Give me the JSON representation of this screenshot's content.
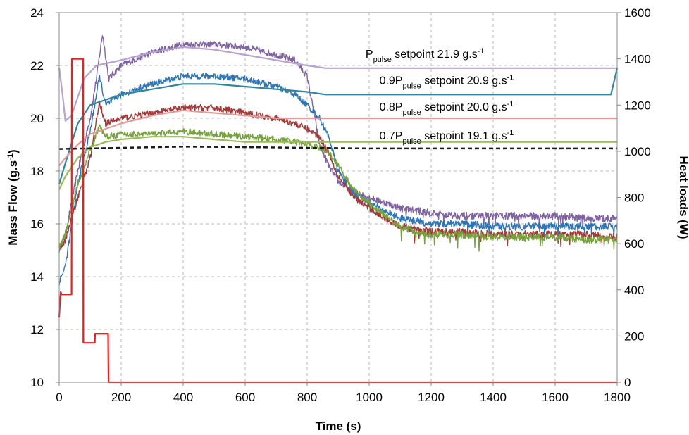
{
  "chart_data": {
    "type": "line",
    "title": "",
    "xlabel": "Time (s)",
    "ylabel_left": "Mass Flow (g.s",
    "ylabel_left_sup": "-1",
    "ylabel_left_end": ")",
    "ylabel_right": "Heat loads (W)",
    "xlim": [
      0,
      1800
    ],
    "ylim_left": [
      10,
      24
    ],
    "ylim_right": [
      0,
      1600
    ],
    "xticks": [
      0,
      200,
      400,
      600,
      800,
      1000,
      1200,
      1400,
      1600,
      1800
    ],
    "yticks_left": [
      10,
      12,
      14,
      16,
      18,
      20,
      22,
      24
    ],
    "yticks_right": [
      0,
      200,
      400,
      600,
      800,
      1000,
      1200,
      1400,
      1600
    ],
    "grid": true,
    "grid_style": "dashed",
    "series": [
      {
        "name": "",
        "axis": "left",
        "color": "#8064a2",
        "noisy": true,
        "x": [
          0,
          20,
          60,
          100,
          120,
          140,
          160,
          200,
          300,
          400,
          500,
          600,
          700,
          760,
          800,
          840,
          870,
          900,
          950,
          1000,
          1050,
          1100,
          1150,
          1200,
          1300,
          1400,
          1500,
          1600,
          1700,
          1800
        ],
        "y": [
          15.0,
          15.6,
          18.0,
          20.0,
          21.5,
          23.2,
          21.5,
          22.0,
          22.5,
          22.8,
          22.8,
          22.7,
          22.4,
          22.2,
          21.6,
          19.0,
          18.2,
          17.6,
          17.2,
          17.0,
          16.8,
          16.6,
          16.5,
          16.4,
          16.3,
          16.3,
          16.3,
          16.3,
          16.2,
          16.2
        ]
      },
      {
        "name": "",
        "axis": "left",
        "color": "#2e75b6",
        "noisy": true,
        "x": [
          0,
          20,
          60,
          100,
          130,
          150,
          200,
          300,
          400,
          500,
          600,
          700,
          760,
          800,
          840,
          870,
          900,
          950,
          1000,
          1050,
          1100,
          1150,
          1200,
          1300,
          1400,
          1500,
          1600,
          1700,
          1800
        ],
        "y": [
          13.8,
          14.4,
          17.5,
          19.5,
          21.6,
          20.5,
          20.9,
          21.3,
          21.6,
          21.6,
          21.5,
          21.2,
          20.9,
          20.5,
          20.0,
          19.3,
          18.0,
          17.2,
          16.8,
          16.5,
          16.2,
          16.1,
          16.0,
          16.0,
          15.9,
          15.9,
          15.9,
          15.9,
          15.9
        ]
      },
      {
        "name": "",
        "axis": "left",
        "color": "#a33a3a",
        "noisy": true,
        "x": [
          0,
          20,
          60,
          100,
          130,
          150,
          200,
          300,
          400,
          500,
          600,
          700,
          760,
          800,
          840,
          870,
          900,
          950,
          1000,
          1050,
          1100,
          1150,
          1200,
          1300,
          1400,
          1500,
          1600,
          1700,
          1800
        ],
        "y": [
          15.0,
          15.4,
          17.0,
          18.5,
          20.6,
          19.8,
          20.0,
          20.2,
          20.4,
          20.4,
          20.2,
          20.0,
          19.8,
          19.6,
          19.3,
          18.7,
          17.8,
          17.0,
          16.6,
          16.2,
          15.9,
          15.8,
          15.7,
          15.7,
          15.6,
          15.6,
          15.6,
          15.6,
          15.5
        ]
      },
      {
        "name": "",
        "axis": "left",
        "color": "#77a33c",
        "noisy": true,
        "x": [
          0,
          20,
          60,
          100,
          130,
          150,
          200,
          300,
          400,
          500,
          600,
          700,
          760,
          800,
          840,
          870,
          900,
          950,
          1000,
          1050,
          1100,
          1150,
          1200,
          1300,
          1400,
          1500,
          1600,
          1700,
          1800
        ],
        "y": [
          15.1,
          15.6,
          17.5,
          18.8,
          19.7,
          19.3,
          19.4,
          19.4,
          19.5,
          19.4,
          19.3,
          19.2,
          19.1,
          19.0,
          18.9,
          18.7,
          18.2,
          17.3,
          16.8,
          16.3,
          15.9,
          15.7,
          15.6,
          15.6,
          15.5,
          15.5,
          15.5,
          15.4,
          15.4
        ]
      },
      {
        "name": "",
        "axis": "left",
        "color": "#b8a2d4",
        "noisy": false,
        "x": [
          0,
          10,
          20,
          40,
          80,
          120,
          200,
          300,
          400,
          500,
          600,
          700,
          800,
          860,
          1000,
          1200,
          1400,
          1600,
          1800
        ],
        "y": [
          21.9,
          21.0,
          19.9,
          20.1,
          21.5,
          22.0,
          22.2,
          22.5,
          22.7,
          22.6,
          22.4,
          22.2,
          22.0,
          21.9,
          21.9,
          21.9,
          21.9,
          21.9,
          21.9
        ]
      },
      {
        "name": "",
        "axis": "left",
        "color": "#31859c",
        "noisy": false,
        "x": [
          0,
          20,
          60,
          100,
          150,
          200,
          300,
          400,
          500,
          600,
          700,
          800,
          860,
          900,
          1000,
          1200,
          1400,
          1600,
          1780,
          1800
        ],
        "y": [
          17.5,
          18.3,
          19.8,
          20.5,
          20.7,
          20.9,
          21.1,
          21.3,
          21.3,
          21.2,
          21.1,
          21.0,
          20.9,
          20.9,
          20.9,
          20.9,
          20.9,
          20.9,
          20.9,
          21.9
        ]
      },
      {
        "name": "",
        "axis": "left",
        "color": "#e49a9a",
        "noisy": false,
        "x": [
          0,
          20,
          60,
          100,
          150,
          200,
          300,
          400,
          500,
          600,
          700,
          800,
          860,
          900,
          1000,
          1200,
          1400,
          1600,
          1800
        ],
        "y": [
          18.2,
          18.5,
          19.0,
          19.4,
          19.6,
          19.8,
          20.1,
          20.3,
          20.2,
          20.1,
          20.0,
          20.0,
          20.0,
          20.0,
          20.0,
          20.0,
          20.0,
          20.0,
          20.0
        ]
      },
      {
        "name": "",
        "axis": "left",
        "color": "#9bbb59",
        "noisy": false,
        "x": [
          0,
          20,
          60,
          100,
          150,
          200,
          300,
          400,
          500,
          600,
          700,
          800,
          860,
          900,
          1000,
          1200,
          1400,
          1600,
          1800
        ],
        "y": [
          17.3,
          17.8,
          18.5,
          18.9,
          19.1,
          19.2,
          19.3,
          19.3,
          19.2,
          19.1,
          19.1,
          19.1,
          19.1,
          19.1,
          19.1,
          19.1,
          19.1,
          19.1,
          19.1
        ]
      },
      {
        "name": "",
        "axis": "right",
        "color": "#1a1a1a",
        "dashed": true,
        "noisy": false,
        "x": [
          0,
          200,
          400,
          600,
          800,
          1000,
          1200,
          1400,
          1600,
          1800
        ],
        "y": [
          1010,
          1015,
          1020,
          1018,
          1015,
          1012,
          1012,
          1012,
          1012,
          1012
        ]
      },
      {
        "name": "",
        "axis": "right",
        "color": "#e8201f",
        "step": true,
        "noisy": false,
        "x": [
          0,
          2,
          5,
          8,
          40,
          41,
          77,
          78,
          115,
          116,
          158,
          159,
          172,
          173,
          1800
        ],
        "y": [
          280,
          330,
          390,
          380,
          380,
          1400,
          1400,
          170,
          170,
          210,
          210,
          0,
          0,
          0,
          0
        ]
      }
    ],
    "annotations": [
      {
        "prefix": "P",
        "sub": "pulse",
        "suffix": " setpoint 21.9 g.s",
        "sup": "-1",
        "x": 1180,
        "y": 22.3
      },
      {
        "prefix": "0.9P",
        "sub": "pulse",
        "suffix": " setpoint 20.9 g.s",
        "sup": "-1",
        "x": 1250,
        "y": 21.3
      },
      {
        "prefix": "0.8P",
        "sub": "pulse",
        "suffix": " setpoint 20.0 g.s",
        "sup": "-1",
        "x": 1250,
        "y": 20.3
      },
      {
        "prefix": "0.7P",
        "sub": "pulse",
        "suffix": " setpoint 19.1 g.s",
        "sup": "-1",
        "x": 1250,
        "y": 19.2
      }
    ]
  }
}
